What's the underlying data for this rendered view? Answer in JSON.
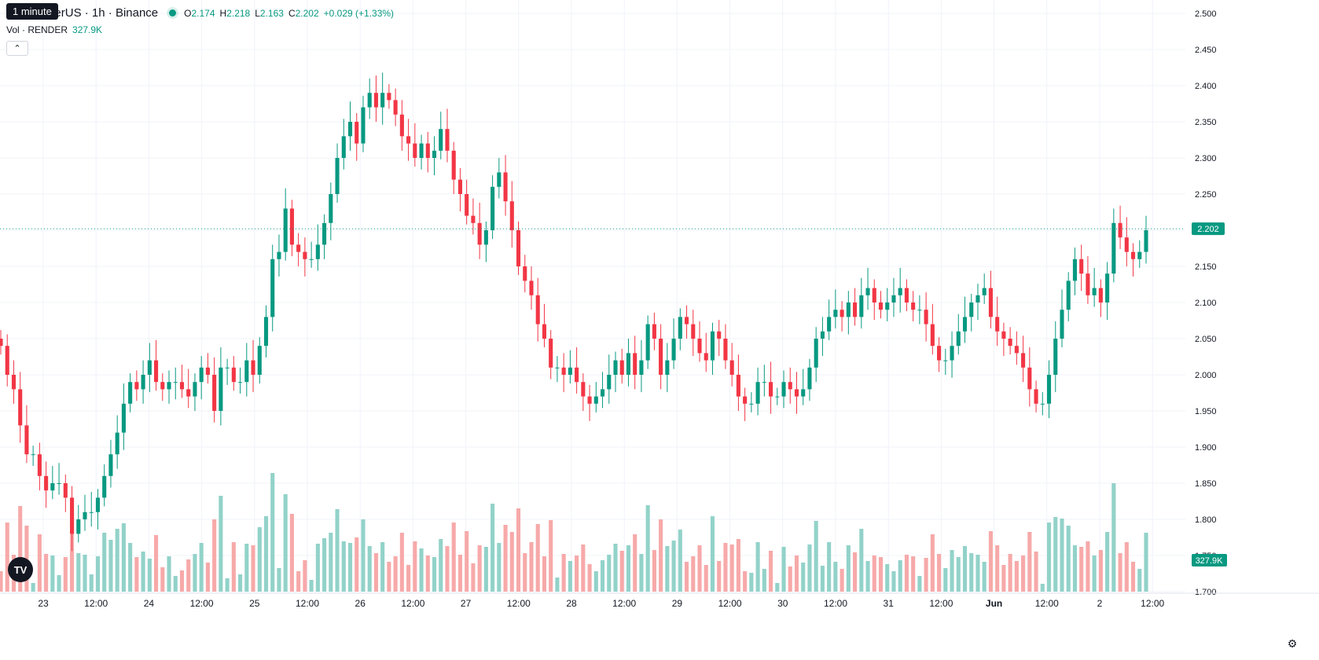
{
  "header": {
    "tooltip": "1 minute",
    "title": "ER / TetherUS · 1h · Binance",
    "o_label": "O",
    "o_value": "2.174",
    "h_label": "H",
    "h_value": "2.218",
    "l_label": "L",
    "l_value": "2.163",
    "c_label": "C",
    "c_value": "2.202",
    "change": "+0.029 (+1.33%)"
  },
  "volume": {
    "label": "Vol · RENDER",
    "value": "327.9K",
    "badge": "327.9K"
  },
  "price_badge": "2.202",
  "colors": {
    "up": "#089981",
    "down": "#f23645",
    "up_vol": "#92d2c9",
    "down_vol": "#f7a9a9",
    "grid": "#f0f3fa"
  },
  "icons": {
    "collapse": "chevron-up-icon",
    "logo": "tradingview-logo-icon",
    "settings": "gear-icon"
  },
  "chart_data": {
    "type": "candlestick",
    "title": "",
    "symbol": "RENDER / TetherUS",
    "interval": "1h",
    "exchange": "Binance",
    "ylim": [
      1.7,
      2.5
    ],
    "y_ticks": [
      "2.500",
      "2.450",
      "2.400",
      "2.350",
      "2.300",
      "2.250",
      "2.200",
      "2.150",
      "2.100",
      "2.050",
      "2.000",
      "1.950",
      "1.900",
      "1.850",
      "1.800",
      "1.750",
      "1.700"
    ],
    "x_ticks": [
      "23",
      "12:00",
      "24",
      "12:00",
      "25",
      "12:00",
      "26",
      "12:00",
      "27",
      "12:00",
      "28",
      "12:00",
      "29",
      "12:00",
      "30",
      "12:00",
      "31",
      "12:00",
      "Jun",
      "12:00",
      "2",
      "12:00"
    ],
    "last_price": 2.202,
    "grid": true,
    "closes": [
      2.04,
      2.0,
      1.98,
      1.93,
      1.89,
      1.89,
      1.86,
      1.84,
      1.85,
      1.85,
      1.83,
      1.78,
      1.8,
      1.81,
      1.81,
      1.83,
      1.86,
      1.89,
      1.92,
      1.96,
      1.99,
      1.98,
      2.0,
      2.02,
      1.99,
      1.98,
      1.99,
      1.99,
      1.98,
      1.97,
      1.99,
      2.01,
      2.0,
      1.95,
      2.01,
      2.01,
      1.99,
      1.99,
      2.02,
      2.0,
      2.04,
      2.08,
      2.16,
      2.17,
      2.23,
      2.18,
      2.17,
      2.16,
      2.16,
      2.18,
      2.21,
      2.25,
      2.3,
      2.33,
      2.35,
      2.32,
      2.37,
      2.39,
      2.37,
      2.39,
      2.38,
      2.36,
      2.33,
      2.32,
      2.3,
      2.32,
      2.3,
      2.31,
      2.34,
      2.31,
      2.27,
      2.25,
      2.22,
      2.21,
      2.18,
      2.2,
      2.26,
      2.28,
      2.24,
      2.2,
      2.15,
      2.13,
      2.11,
      2.07,
      2.05,
      2.01,
      2.01,
      2.0,
      2.01,
      1.99,
      1.97,
      1.96,
      1.97,
      1.98,
      2.0,
      2.02,
      2.0,
      2.03,
      2.0,
      2.02,
      2.07,
      2.05,
      2.0,
      2.02,
      2.05,
      2.08,
      2.07,
      2.05,
      2.03,
      2.02,
      2.06,
      2.05,
      2.02,
      2.0,
      1.97,
      1.96,
      1.96,
      1.99,
      1.99,
      1.97,
      1.97,
      1.99,
      1.98,
      1.97,
      1.98,
      2.01,
      2.05,
      2.06,
      2.08,
      2.09,
      2.08,
      2.1,
      2.08,
      2.11,
      2.12,
      2.1,
      2.09,
      2.1,
      2.11,
      2.12,
      2.1,
      2.09,
      2.09,
      2.07,
      2.04,
      2.02,
      2.02,
      2.04,
      2.06,
      2.08,
      2.1,
      2.11,
      2.12,
      2.08,
      2.06,
      2.05,
      2.04,
      2.03,
      2.01,
      1.98,
      1.96,
      1.96,
      2.0,
      2.05,
      2.09,
      2.13,
      2.16,
      2.14,
      2.11,
      2.12,
      2.1,
      2.14,
      2.21,
      2.19,
      2.17,
      2.16,
      2.17,
      2.2
    ]
  }
}
